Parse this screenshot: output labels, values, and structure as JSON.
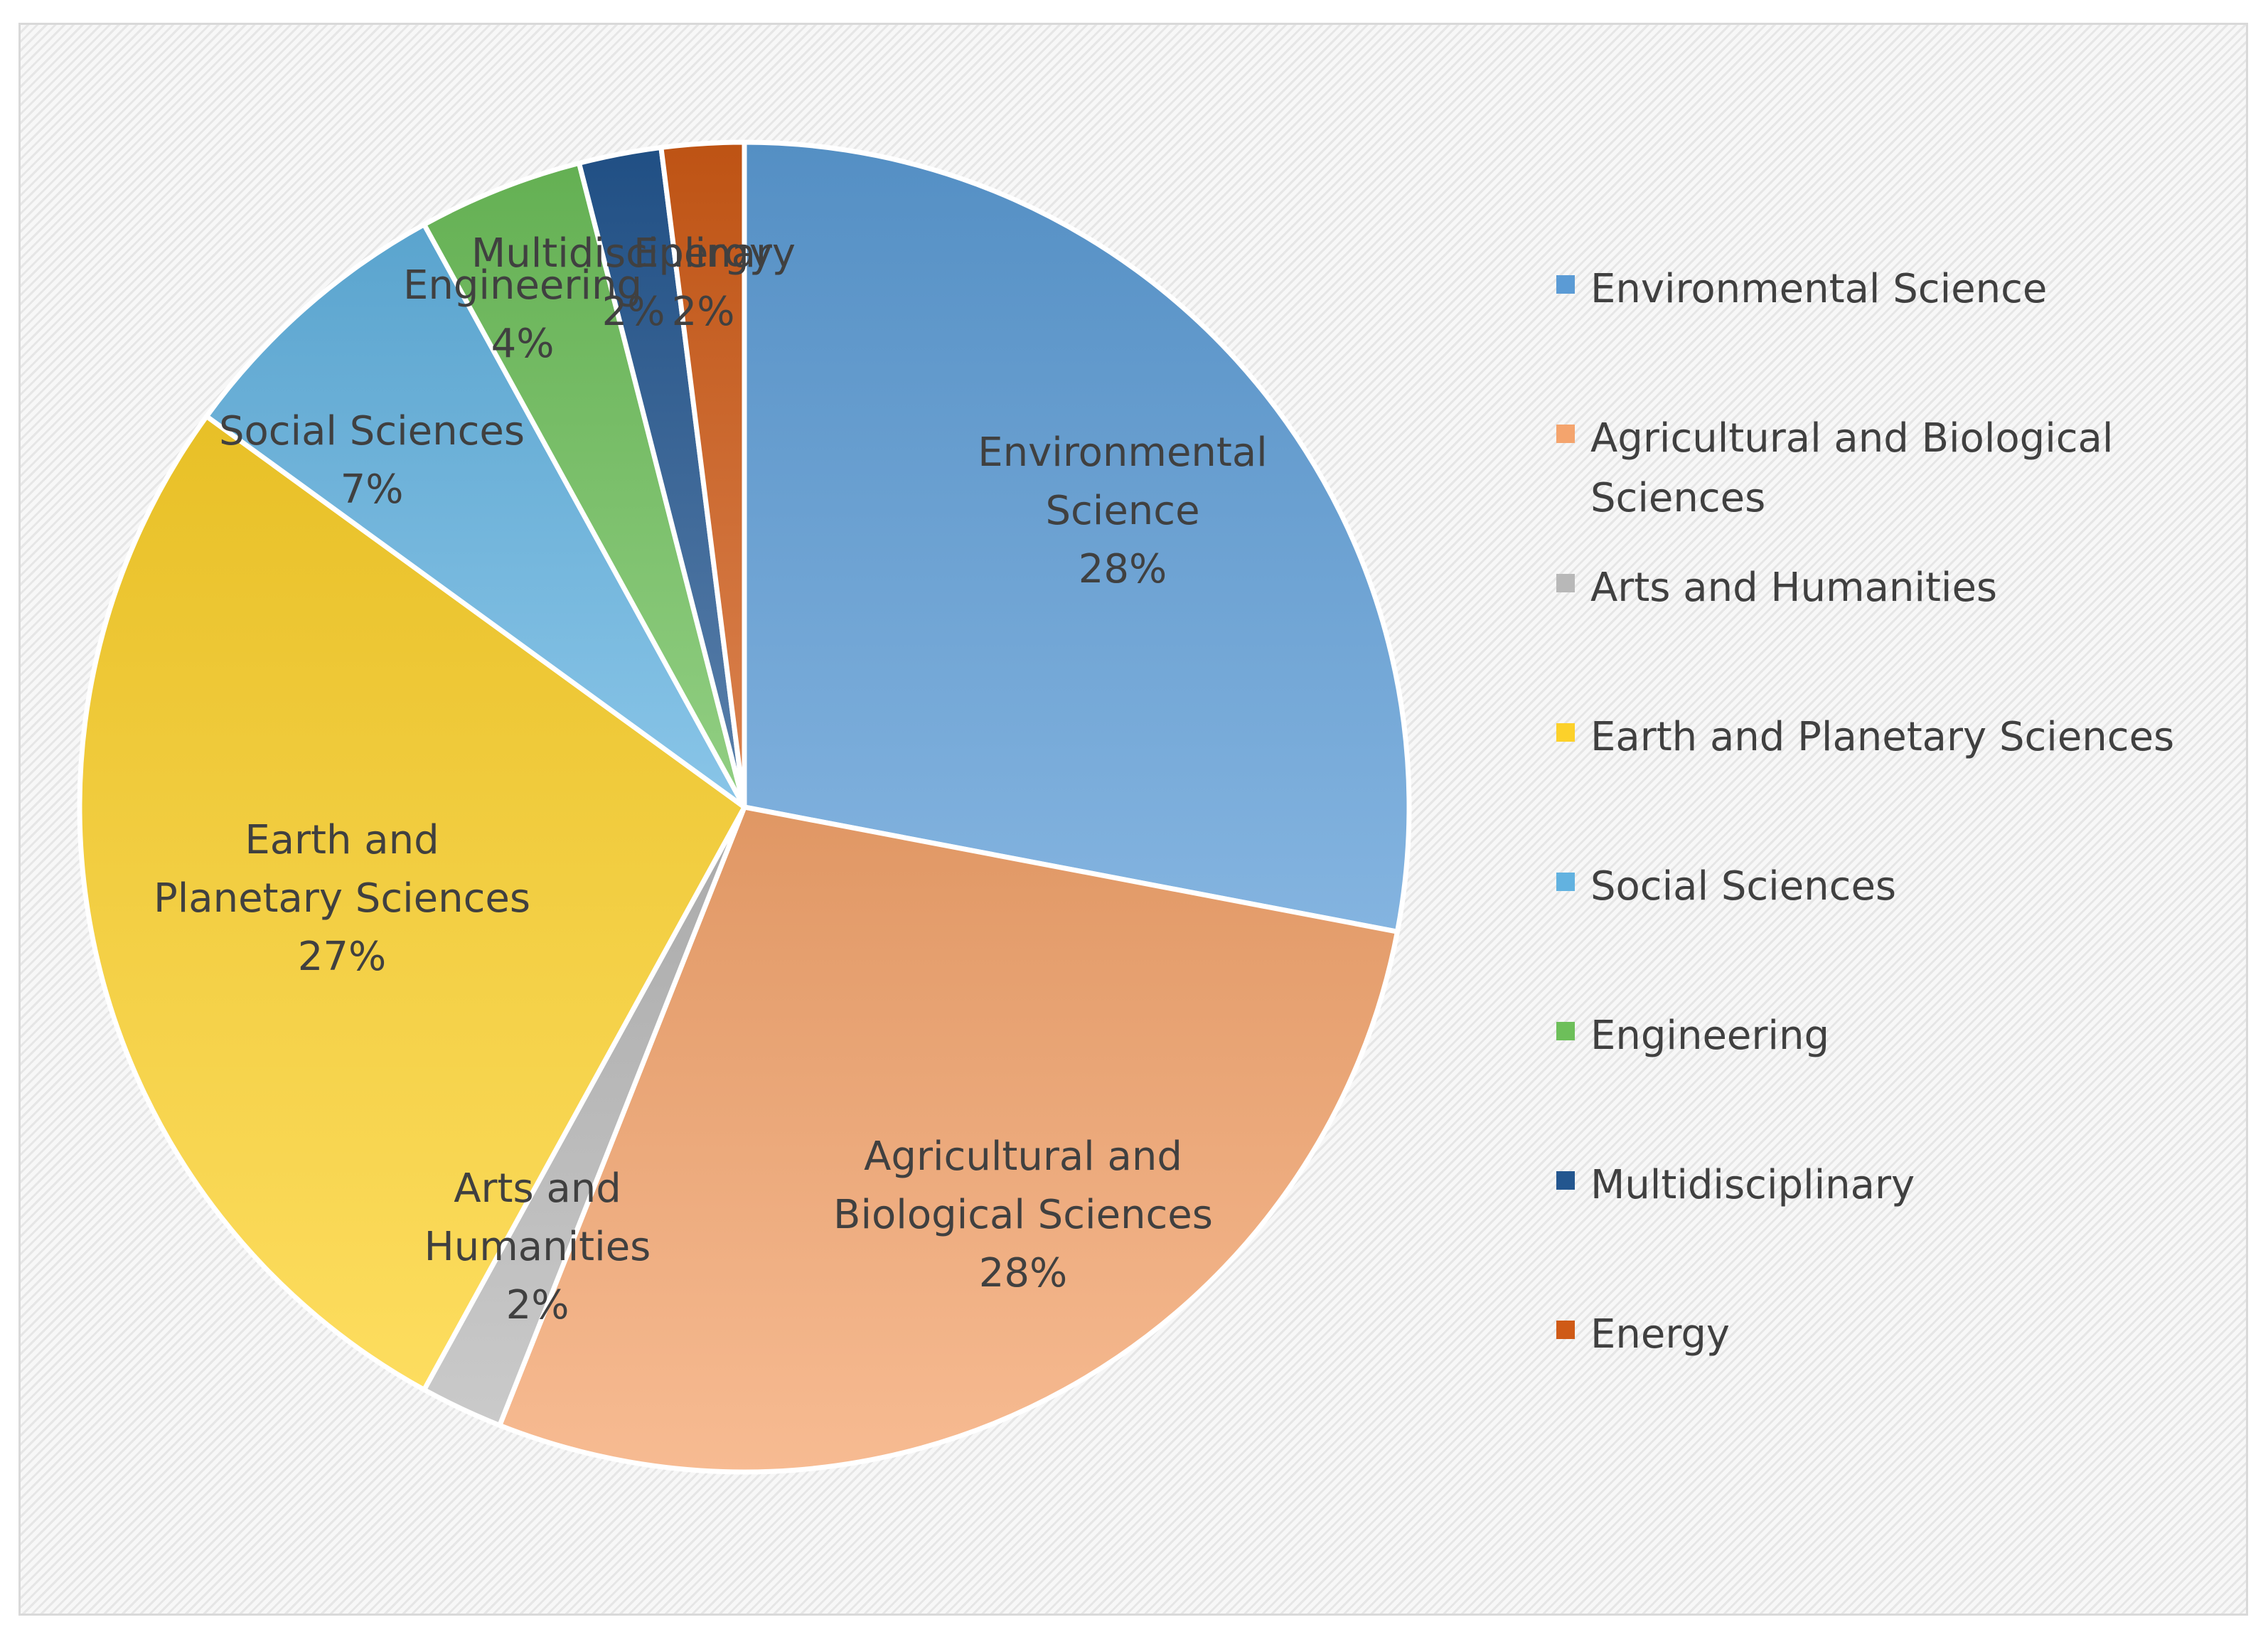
{
  "chart_data": {
    "type": "pie",
    "title": "",
    "slices": [
      {
        "name": "Environmental Science",
        "value": 28,
        "percent_label": "28%",
        "color": "#5b9bd5",
        "label_lines": [
          "Environmental",
          "Science"
        ]
      },
      {
        "name": "Agricultural and Biological Sciences",
        "value": 28,
        "percent_label": "28%",
        "color": "#f4a46d",
        "label_lines": [
          "Agricultural and",
          "Biological Sciences"
        ]
      },
      {
        "name": "Arts and Humanities",
        "value": 2,
        "percent_label": "2%",
        "color": "#b8b8b8",
        "label_lines": [
          "Arts and",
          "Humanities"
        ]
      },
      {
        "name": "Earth and Planetary Sciences",
        "value": 27,
        "percent_label": "27%",
        "color": "#fcd12a",
        "label_lines": [
          "Earth and",
          "Planetary Sciences"
        ]
      },
      {
        "name": "Social Sciences",
        "value": 7,
        "percent_label": "7%",
        "color": "#62b2e0",
        "label_lines": [
          "Social Sciences"
        ]
      },
      {
        "name": "Engineering",
        "value": 4,
        "percent_label": "4%",
        "color": "#6dbf5a",
        "label_lines": [
          "Engineering"
        ]
      },
      {
        "name": "Multidisciplinary",
        "value": 2,
        "percent_label": "2%",
        "color": "#23568f",
        "label_lines": [
          "Multidisciplinary"
        ]
      },
      {
        "name": "Energy",
        "value": 2,
        "percent_label": "2%",
        "color": "#cf5a16",
        "label_lines": [
          "Energy"
        ]
      }
    ],
    "legend_position": "right",
    "legend": [
      "Environmental Science",
      "Agricultural and Biological Sciences",
      "Arts and Humanities",
      "Earth and Planetary Sciences",
      "Social Sciences",
      "Engineering",
      "Multidisciplinary",
      "Energy"
    ]
  }
}
